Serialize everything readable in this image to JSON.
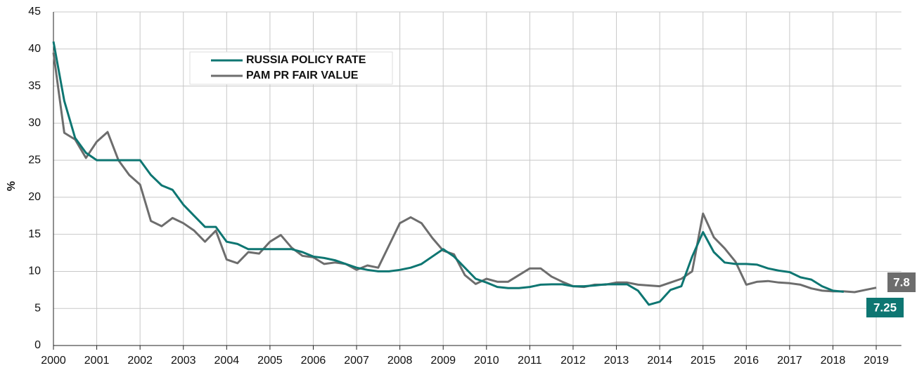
{
  "chart_data": {
    "type": "line",
    "ylabel": "%",
    "x": [
      2000,
      2000.25,
      2000.5,
      2000.75,
      2001,
      2001.25,
      2001.5,
      2001.75,
      2002,
      2002.25,
      2002.5,
      2002.75,
      2003,
      2003.25,
      2003.5,
      2003.75,
      2004,
      2004.25,
      2004.5,
      2004.75,
      2005,
      2005.25,
      2005.5,
      2005.75,
      2006,
      2006.25,
      2006.5,
      2006.75,
      2007,
      2007.25,
      2007.5,
      2007.75,
      2008,
      2008.25,
      2008.5,
      2008.75,
      2009,
      2009.25,
      2009.5,
      2009.75,
      2010,
      2010.25,
      2010.5,
      2010.75,
      2011,
      2011.25,
      2011.5,
      2011.75,
      2012,
      2012.25,
      2012.5,
      2012.75,
      2013,
      2013.25,
      2013.5,
      2013.75,
      2014,
      2014.25,
      2014.5,
      2014.75,
      2015,
      2015.25,
      2015.5,
      2015.75,
      2016,
      2016.25,
      2016.5,
      2016.75,
      2017,
      2017.25,
      2017.5,
      2017.75,
      2018,
      2018.25,
      2018.5,
      2018.75,
      2019
    ],
    "series": [
      {
        "name": "RUSSIA POLICY RATE",
        "color": "#0e7672",
        "values": [
          41,
          33,
          28,
          26,
          25,
          25,
          25,
          25,
          25,
          23,
          21.6,
          21,
          19,
          17.5,
          16,
          16,
          14,
          13.7,
          13,
          13,
          13,
          13,
          13,
          12.6,
          12,
          11.8,
          11.5,
          11,
          10.5,
          10.2,
          10,
          10,
          10.2,
          10.5,
          11,
          12,
          13,
          12,
          10.5,
          9,
          8.5,
          7.9,
          7.75,
          7.75,
          7.9,
          8.2,
          8.25,
          8.25,
          8,
          8,
          8.1,
          8.25,
          8.25,
          8.25,
          7.4,
          5.5,
          5.9,
          7.5,
          8,
          12,
          15.3,
          12.6,
          11.2,
          11,
          11,
          10.9,
          10.4,
          10.1,
          9.9,
          9.2,
          8.9,
          8,
          7.4,
          7.25,
          null,
          null,
          null
        ]
      },
      {
        "name": "PAM PR FAIR VALUE",
        "color": "#6d6d6d",
        "values": [
          39.5,
          28.7,
          27.8,
          25.3,
          27.5,
          28.8,
          25,
          23,
          21.7,
          16.8,
          16.1,
          17.2,
          16.5,
          15.5,
          14,
          15.5,
          11.6,
          11.1,
          12.6,
          12.4,
          14,
          14.9,
          13.2,
          12.1,
          11.9,
          11,
          11.2,
          11,
          10.2,
          10.8,
          10.5,
          13.5,
          16.5,
          17.3,
          16.5,
          14.5,
          12.8,
          12.3,
          9.5,
          8.3,
          9,
          8.6,
          8.6,
          9.5,
          10.4,
          10.4,
          9.3,
          8.6,
          8,
          7.9,
          8.2,
          8.2,
          8.5,
          8.5,
          8.2,
          8.1,
          8,
          8.5,
          9,
          10,
          17.8,
          14.6,
          13.1,
          11.3,
          8.2,
          8.6,
          8.7,
          8.5,
          8.4,
          8.2,
          7.7,
          7.4,
          7.3,
          7.3,
          7.2,
          7.5,
          7.8
        ]
      }
    ],
    "xlim": [
      2000,
      2019.58
    ],
    "xticks": [
      2000,
      2001,
      2002,
      2003,
      2004,
      2005,
      2006,
      2007,
      2008,
      2009,
      2010,
      2011,
      2012,
      2013,
      2014,
      2015,
      2016,
      2017,
      2018,
      2019
    ],
    "ylim": [
      0,
      45
    ],
    "yticks": [
      0,
      5,
      10,
      15,
      20,
      25,
      30,
      35,
      40,
      45
    ],
    "grid": true
  }
}
